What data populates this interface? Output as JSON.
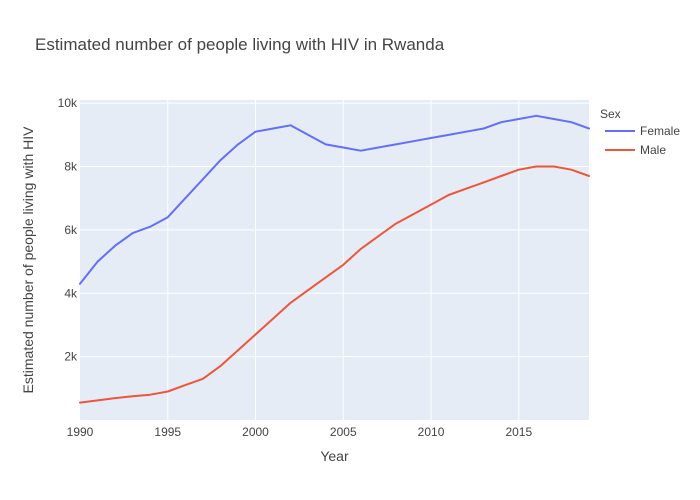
{
  "chart_data": {
    "type": "line",
    "title": "Estimated number of people living with HIV in Rwanda",
    "xlabel": "Year",
    "ylabel": "Estimated number of people living with HIV",
    "xlim": [
      1990,
      2019
    ],
    "ylim": [
      0,
      10100
    ],
    "x_ticks": [
      1990,
      1995,
      2000,
      2005,
      2010,
      2015
    ],
    "x_tick_labels": [
      "1990",
      "1995",
      "2000",
      "2005",
      "2010",
      "2015"
    ],
    "y_ticks": [
      2000,
      4000,
      6000,
      8000,
      10000
    ],
    "y_tick_labels": [
      "2k",
      "4k",
      "6k",
      "8k",
      "10k"
    ],
    "grid": true,
    "legend": {
      "title": "Sex",
      "placement": "top-right-outside"
    },
    "x": [
      1990,
      1991,
      1992,
      1993,
      1994,
      1995,
      1996,
      1997,
      1998,
      1999,
      2000,
      2001,
      2002,
      2003,
      2004,
      2005,
      2006,
      2007,
      2008,
      2009,
      2010,
      2011,
      2012,
      2013,
      2014,
      2015,
      2016,
      2017,
      2018,
      2019
    ],
    "series": [
      {
        "name": "Female",
        "color": "#636efa",
        "values": [
          4300,
          5000,
          5500,
          5900,
          6100,
          6400,
          7000,
          7600,
          8200,
          8700,
          9100,
          9200,
          9300,
          9000,
          8700,
          8600,
          8500,
          8600,
          8700,
          8800,
          8900,
          9000,
          9100,
          9200,
          9400,
          9500,
          9600,
          9500,
          9400,
          9200
        ]
      },
      {
        "name": "Male",
        "color": "#ef553b",
        "values": [
          550,
          620,
          690,
          750,
          800,
          900,
          1100,
          1300,
          1700,
          2200,
          2700,
          3200,
          3700,
          4100,
          4500,
          4900,
          5400,
          5800,
          6200,
          6500,
          6800,
          7100,
          7300,
          7500,
          7700,
          7900,
          8000,
          8000,
          7900,
          7700
        ]
      }
    ]
  }
}
